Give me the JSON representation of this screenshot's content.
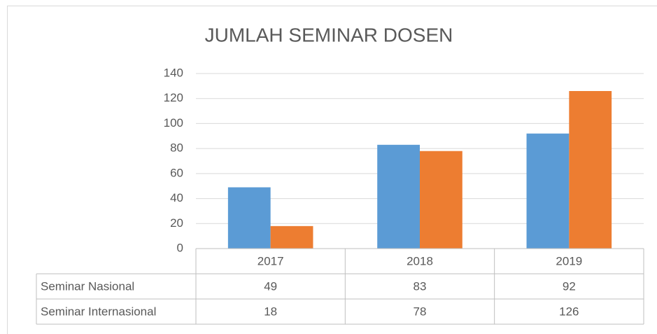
{
  "chart_data": {
    "type": "bar",
    "title": "JUMLAH SEMINAR DOSEN",
    "categories": [
      "2017",
      "2018",
      "2019"
    ],
    "series": [
      {
        "name": "Seminar Nasional",
        "color": "#5b9bd5",
        "values": [
          49,
          83,
          92
        ]
      },
      {
        "name": "Seminar Internasional",
        "color": "#ed7d31",
        "values": [
          18,
          78,
          126
        ]
      }
    ],
    "ylim": [
      0,
      140
    ],
    "yticks": [
      0,
      20,
      40,
      60,
      80,
      100,
      120,
      140
    ],
    "grid": true,
    "data_table": true
  }
}
